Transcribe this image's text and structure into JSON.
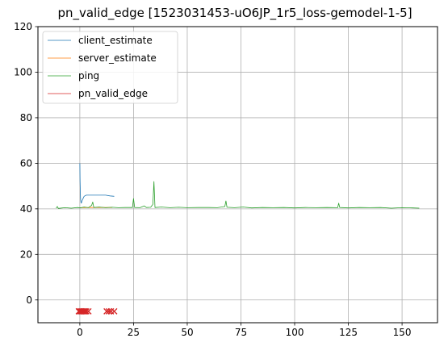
{
  "chart_data": {
    "type": "line",
    "title": "pn_valid_edge [1523031453-uO6JP_1r5_loss-gemodel-1-5]",
    "xlabel": "",
    "ylabel": "",
    "xlim": [
      -19.5,
      166.5
    ],
    "ylim": [
      -10,
      120
    ],
    "xticks": [
      0,
      25,
      50,
      75,
      100,
      125,
      150
    ],
    "yticks": [
      0,
      20,
      40,
      60,
      80,
      100,
      120
    ],
    "grid": true,
    "legend_position": "top-left",
    "series": [
      {
        "name": "client_estimate",
        "color": "#1f77b4",
        "kind": "line",
        "points": [
          [
            0.0,
            60.0
          ],
          [
            0.1,
            52.0
          ],
          [
            0.3,
            45.0
          ],
          [
            0.5,
            43.0
          ],
          [
            0.7,
            42.5
          ],
          [
            1.0,
            43.5
          ],
          [
            1.5,
            44.5
          ],
          [
            2.0,
            45.5
          ],
          [
            3.0,
            46.0
          ],
          [
            5.0,
            46.0
          ],
          [
            8.0,
            46.0
          ],
          [
            12.0,
            46.0
          ],
          [
            14.0,
            45.7
          ],
          [
            16.0,
            45.5
          ]
        ]
      },
      {
        "name": "server_estimate",
        "color": "#ff7f0e",
        "kind": "line",
        "points": [
          [
            0.0,
            40.5
          ],
          [
            1.0,
            40.5
          ],
          [
            5.0,
            40.6
          ],
          [
            10.0,
            40.6
          ],
          [
            15.0,
            40.6
          ]
        ]
      },
      {
        "name": "ping",
        "color": "#2ca02c",
        "kind": "line",
        "points": [
          [
            -11.0,
            40.3
          ],
          [
            -10.5,
            41.0
          ],
          [
            -10.0,
            40.2
          ],
          [
            -7.0,
            40.5
          ],
          [
            -4.0,
            40.3
          ],
          [
            -1.0,
            40.6
          ],
          [
            0.0,
            40.4
          ],
          [
            2.0,
            40.8
          ],
          [
            4.0,
            40.5
          ],
          [
            5.5,
            41.5
          ],
          [
            6.0,
            43.0
          ],
          [
            6.5,
            40.6
          ],
          [
            9.0,
            40.8
          ],
          [
            12.0,
            40.5
          ],
          [
            15.0,
            40.7
          ],
          [
            18.0,
            40.5
          ],
          [
            21.0,
            40.6
          ],
          [
            24.5,
            40.6
          ],
          [
            25.0,
            44.5
          ],
          [
            25.5,
            40.6
          ],
          [
            28.0,
            40.5
          ],
          [
            30.0,
            41.3
          ],
          [
            31.0,
            40.6
          ],
          [
            33.0,
            40.7
          ],
          [
            34.0,
            42.0
          ],
          [
            34.5,
            52.0
          ],
          [
            35.0,
            40.6
          ],
          [
            38.0,
            40.8
          ],
          [
            42.0,
            40.5
          ],
          [
            46.0,
            40.7
          ],
          [
            50.0,
            40.5
          ],
          [
            55.0,
            40.6
          ],
          [
            60.0,
            40.6
          ],
          [
            64.0,
            40.5
          ],
          [
            67.5,
            41.0
          ],
          [
            68.0,
            43.5
          ],
          [
            68.5,
            40.7
          ],
          [
            72.0,
            40.5
          ],
          [
            76.0,
            40.8
          ],
          [
            80.0,
            40.4
          ],
          [
            85.0,
            40.6
          ],
          [
            90.0,
            40.5
          ],
          [
            95.0,
            40.6
          ],
          [
            100.0,
            40.4
          ],
          [
            105.0,
            40.6
          ],
          [
            110.0,
            40.5
          ],
          [
            115.0,
            40.6
          ],
          [
            120.0,
            40.5
          ],
          [
            120.5,
            42.5
          ],
          [
            121.0,
            40.6
          ],
          [
            125.0,
            40.4
          ],
          [
            130.0,
            40.6
          ],
          [
            135.0,
            40.5
          ],
          [
            140.0,
            40.6
          ],
          [
            145.0,
            40.3
          ],
          [
            150.0,
            40.5
          ],
          [
            155.0,
            40.4
          ],
          [
            158.0,
            40.3
          ]
        ]
      },
      {
        "name": "pn_valid_edge",
        "color": "#d62728",
        "kind": "markers",
        "marker": "x",
        "points": [
          [
            -0.5,
            -5.0
          ],
          [
            0.0,
            -5.0
          ],
          [
            0.5,
            -5.0
          ],
          [
            1.0,
            -5.0
          ],
          [
            1.5,
            -5.0
          ],
          [
            2.0,
            -5.0
          ],
          [
            2.5,
            -5.0
          ],
          [
            3.0,
            -5.0
          ],
          [
            4.0,
            -5.0
          ],
          [
            12.5,
            -5.0
          ],
          [
            13.5,
            -5.0
          ],
          [
            14.5,
            -5.0
          ],
          [
            16.0,
            -5.0
          ]
        ]
      }
    ]
  }
}
